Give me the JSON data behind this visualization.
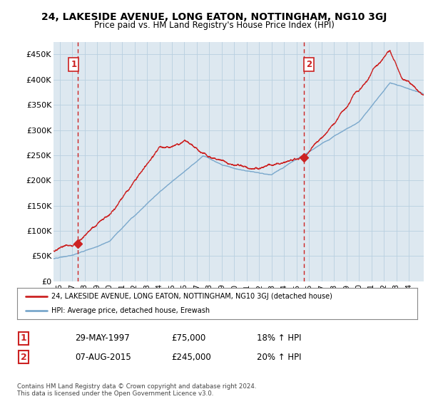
{
  "title": "24, LAKESIDE AVENUE, LONG EATON, NOTTINGHAM, NG10 3GJ",
  "subtitle": "Price paid vs. HM Land Registry's House Price Index (HPI)",
  "red_label": "24, LAKESIDE AVENUE, LONG EATON, NOTTINGHAM, NG10 3GJ (detached house)",
  "blue_label": "HPI: Average price, detached house, Erewash",
  "annotation1": {
    "num": "1",
    "date": "29-MAY-1997",
    "price": "£75,000",
    "pct": "18% ↑ HPI"
  },
  "annotation2": {
    "num": "2",
    "date": "07-AUG-2015",
    "price": "£245,000",
    "pct": "20% ↑ HPI"
  },
  "footnote": "Contains HM Land Registry data © Crown copyright and database right 2024.\nThis data is licensed under the Open Government Licence v3.0.",
  "ylim": [
    0,
    475000
  ],
  "yticks": [
    0,
    50000,
    100000,
    150000,
    200000,
    250000,
    300000,
    350000,
    400000,
    450000
  ],
  "ytick_labels": [
    "£0",
    "£50K",
    "£100K",
    "£150K",
    "£200K",
    "£250K",
    "£300K",
    "£350K",
    "£400K",
    "£450K"
  ],
  "marker1_x": 1997.42,
  "marker1_y": 75000,
  "marker2_x": 2015.58,
  "marker2_y": 245000,
  "vline1_x": 1997.42,
  "vline2_x": 2015.58,
  "bg_color": "#ffffff",
  "plot_bg_color": "#dde8f0",
  "grid_color": "#b8cfe0",
  "red_color": "#cc2222",
  "blue_color": "#7aa8cc",
  "xlim_left": 1995.5,
  "xlim_right": 2025.2
}
